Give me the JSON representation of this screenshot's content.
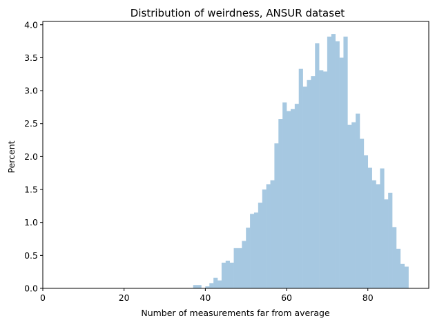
{
  "chart_data": {
    "type": "bar",
    "title": "Distribution of weirdness, ANSUR dataset",
    "xlabel": "Number of measurements far from average",
    "ylabel": "Percent",
    "xlim": [
      0,
      95
    ],
    "ylim": [
      0,
      4.05
    ],
    "xticks": [
      0,
      20,
      40,
      60,
      80
    ],
    "yticks": [
      0.0,
      0.5,
      1.0,
      1.5,
      2.0,
      2.5,
      3.0,
      3.5,
      4.0
    ],
    "ytick_labels": [
      "0.0",
      "0.5",
      "1.0",
      "1.5",
      "2.0",
      "2.5",
      "3.0",
      "3.5",
      "4.0"
    ],
    "grid": false,
    "bar_color": "#a6c8e1",
    "bins": {
      "start": 37,
      "width": 1,
      "values": [
        0.05,
        0.05,
        0.0,
        0.03,
        0.08,
        0.16,
        0.12,
        0.39,
        0.42,
        0.39,
        0.61,
        0.61,
        0.72,
        0.92,
        1.13,
        1.15,
        1.3,
        1.5,
        1.58,
        1.64,
        2.2,
        2.57,
        2.82,
        2.69,
        2.72,
        2.8,
        3.33,
        3.06,
        3.16,
        3.22,
        3.72,
        3.31,
        3.29,
        3.82,
        3.86,
        3.75,
        3.5,
        3.82,
        2.48,
        2.52,
        2.65,
        2.27,
        2.02,
        1.83,
        1.64,
        1.58,
        1.82,
        1.35,
        1.45,
        0.93,
        0.6,
        0.37,
        0.33
      ]
    }
  }
}
